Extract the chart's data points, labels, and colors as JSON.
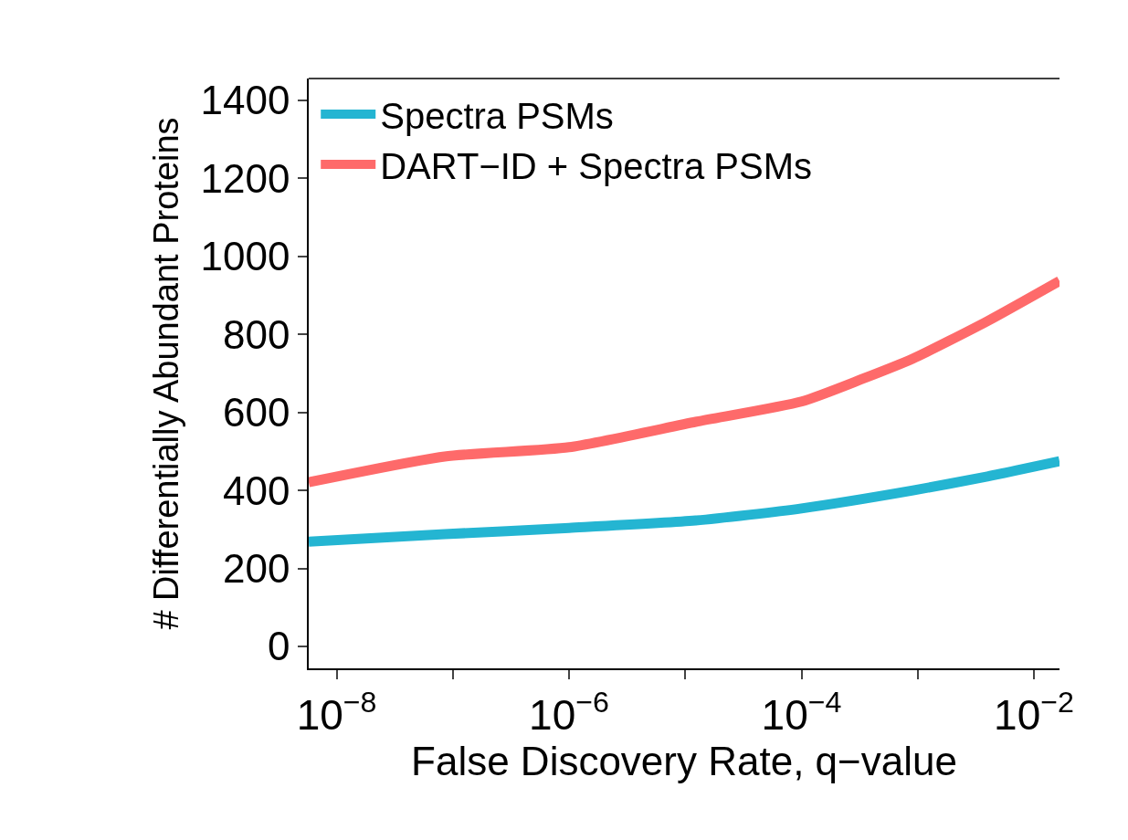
{
  "chart_data": {
    "type": "line",
    "xlabel": "False Discovery Rate, q−value",
    "ylabel": "# Differentially Abundant Proteins",
    "log": "x",
    "legend": "top left",
    "marker": "none",
    "line_style": "solid",
    "xlim": [
      5.75e-09,
      0.0166
    ],
    "ylim": [
      -56,
      1456
    ],
    "xticks": [
      {
        "value": 1e-08,
        "label": "10$^{−8}$"
      },
      {
        "value": 1e-07,
        "label": null
      },
      {
        "value": 1e-06,
        "label": "10$^{−6}$"
      },
      {
        "value": 1e-05,
        "label": null
      },
      {
        "value": 0.0001,
        "label": "10$^{−4}$"
      },
      {
        "value": 0.001,
        "label": null
      },
      {
        "value": 0.01,
        "label": "10$^{−2}$"
      }
    ],
    "yticks": [
      0,
      200,
      400,
      600,
      800,
      1000,
      1200,
      1400
    ],
    "series": [
      {
        "name": "Spectra PSMs",
        "color": "#24b5d2",
        "x": [
          5.75e-09,
          8.5e-08,
          1e-06,
          1.23e-05,
          0.0001,
          0.00091,
          0.00398,
          0.0166
        ],
        "values": [
          269,
          288,
          304,
          323,
          354,
          400,
          436,
          475
        ]
      },
      {
        "name": "DART−ID + Spectra PSMs",
        "color": "#fe6a6a",
        "x": [
          5.75e-09,
          8.5e-08,
          1e-06,
          1.23e-05,
          0.0001,
          0.000335,
          0.00091,
          0.00398,
          0.0166
        ],
        "values": [
          421,
          487,
          511,
          576,
          628,
          686,
          738,
          834,
          937
        ]
      }
    ]
  }
}
